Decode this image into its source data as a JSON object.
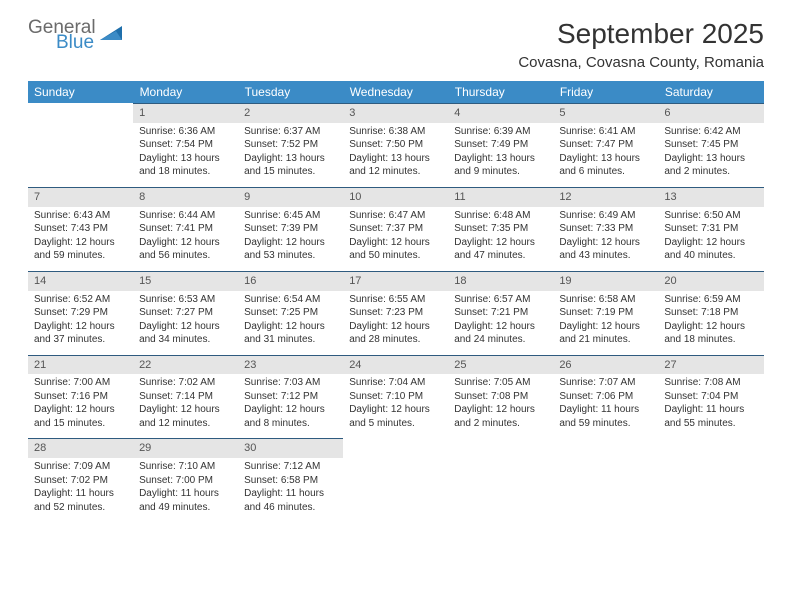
{
  "brand": {
    "word1": "General",
    "word2": "Blue"
  },
  "title": "September 2025",
  "location": "Covasna, Covasna County, Romania",
  "colors": {
    "header_bg": "#3b8bc6",
    "header_text": "#ffffff",
    "daynum_bg": "#e5e5e5",
    "daynum_border": "#2f5b7f",
    "body_text": "#333333",
    "logo_gray": "#6b6b6b",
    "logo_blue": "#3b8bc6"
  },
  "typography": {
    "title_fontsize": 28,
    "location_fontsize": 15,
    "th_fontsize": 12,
    "cell_fontsize": 10
  },
  "weekdays": [
    "Sunday",
    "Monday",
    "Tuesday",
    "Wednesday",
    "Thursday",
    "Friday",
    "Saturday"
  ],
  "grid": {
    "rows": 5,
    "cols": 7,
    "first_day_col": 1,
    "days_in_month": 30
  },
  "days": [
    {
      "n": 1,
      "sunrise": "6:36 AM",
      "sunset": "7:54 PM",
      "daylight": "13 hours and 18 minutes."
    },
    {
      "n": 2,
      "sunrise": "6:37 AM",
      "sunset": "7:52 PM",
      "daylight": "13 hours and 15 minutes."
    },
    {
      "n": 3,
      "sunrise": "6:38 AM",
      "sunset": "7:50 PM",
      "daylight": "13 hours and 12 minutes."
    },
    {
      "n": 4,
      "sunrise": "6:39 AM",
      "sunset": "7:49 PM",
      "daylight": "13 hours and 9 minutes."
    },
    {
      "n": 5,
      "sunrise": "6:41 AM",
      "sunset": "7:47 PM",
      "daylight": "13 hours and 6 minutes."
    },
    {
      "n": 6,
      "sunrise": "6:42 AM",
      "sunset": "7:45 PM",
      "daylight": "13 hours and 2 minutes."
    },
    {
      "n": 7,
      "sunrise": "6:43 AM",
      "sunset": "7:43 PM",
      "daylight": "12 hours and 59 minutes."
    },
    {
      "n": 8,
      "sunrise": "6:44 AM",
      "sunset": "7:41 PM",
      "daylight": "12 hours and 56 minutes."
    },
    {
      "n": 9,
      "sunrise": "6:45 AM",
      "sunset": "7:39 PM",
      "daylight": "12 hours and 53 minutes."
    },
    {
      "n": 10,
      "sunrise": "6:47 AM",
      "sunset": "7:37 PM",
      "daylight": "12 hours and 50 minutes."
    },
    {
      "n": 11,
      "sunrise": "6:48 AM",
      "sunset": "7:35 PM",
      "daylight": "12 hours and 47 minutes."
    },
    {
      "n": 12,
      "sunrise": "6:49 AM",
      "sunset": "7:33 PM",
      "daylight": "12 hours and 43 minutes."
    },
    {
      "n": 13,
      "sunrise": "6:50 AM",
      "sunset": "7:31 PM",
      "daylight": "12 hours and 40 minutes."
    },
    {
      "n": 14,
      "sunrise": "6:52 AM",
      "sunset": "7:29 PM",
      "daylight": "12 hours and 37 minutes."
    },
    {
      "n": 15,
      "sunrise": "6:53 AM",
      "sunset": "7:27 PM",
      "daylight": "12 hours and 34 minutes."
    },
    {
      "n": 16,
      "sunrise": "6:54 AM",
      "sunset": "7:25 PM",
      "daylight": "12 hours and 31 minutes."
    },
    {
      "n": 17,
      "sunrise": "6:55 AM",
      "sunset": "7:23 PM",
      "daylight": "12 hours and 28 minutes."
    },
    {
      "n": 18,
      "sunrise": "6:57 AM",
      "sunset": "7:21 PM",
      "daylight": "12 hours and 24 minutes."
    },
    {
      "n": 19,
      "sunrise": "6:58 AM",
      "sunset": "7:19 PM",
      "daylight": "12 hours and 21 minutes."
    },
    {
      "n": 20,
      "sunrise": "6:59 AM",
      "sunset": "7:18 PM",
      "daylight": "12 hours and 18 minutes."
    },
    {
      "n": 21,
      "sunrise": "7:00 AM",
      "sunset": "7:16 PM",
      "daylight": "12 hours and 15 minutes."
    },
    {
      "n": 22,
      "sunrise": "7:02 AM",
      "sunset": "7:14 PM",
      "daylight": "12 hours and 12 minutes."
    },
    {
      "n": 23,
      "sunrise": "7:03 AM",
      "sunset": "7:12 PM",
      "daylight": "12 hours and 8 minutes."
    },
    {
      "n": 24,
      "sunrise": "7:04 AM",
      "sunset": "7:10 PM",
      "daylight": "12 hours and 5 minutes."
    },
    {
      "n": 25,
      "sunrise": "7:05 AM",
      "sunset": "7:08 PM",
      "daylight": "12 hours and 2 minutes."
    },
    {
      "n": 26,
      "sunrise": "7:07 AM",
      "sunset": "7:06 PM",
      "daylight": "11 hours and 59 minutes."
    },
    {
      "n": 27,
      "sunrise": "7:08 AM",
      "sunset": "7:04 PM",
      "daylight": "11 hours and 55 minutes."
    },
    {
      "n": 28,
      "sunrise": "7:09 AM",
      "sunset": "7:02 PM",
      "daylight": "11 hours and 52 minutes."
    },
    {
      "n": 29,
      "sunrise": "7:10 AM",
      "sunset": "7:00 PM",
      "daylight": "11 hours and 49 minutes."
    },
    {
      "n": 30,
      "sunrise": "7:12 AM",
      "sunset": "6:58 PM",
      "daylight": "11 hours and 46 minutes."
    }
  ],
  "labels": {
    "sunrise": "Sunrise:",
    "sunset": "Sunset:",
    "daylight": "Daylight:"
  }
}
